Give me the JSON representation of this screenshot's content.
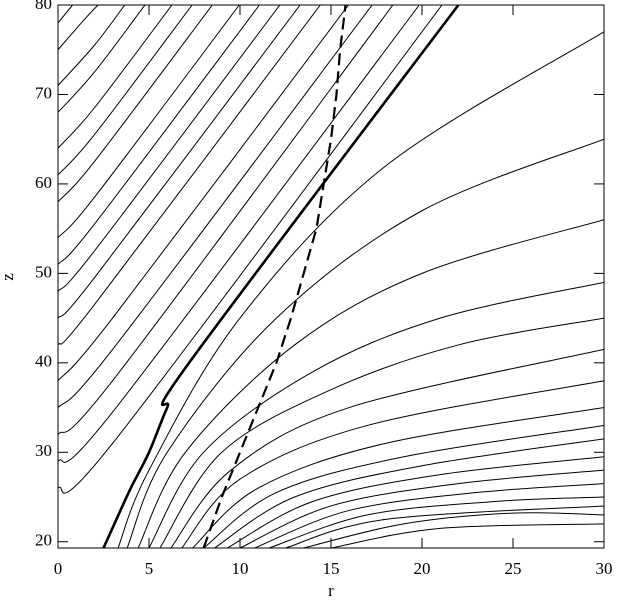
{
  "chart_data": {
    "type": "line",
    "xlabel": "r",
    "ylabel": "z",
    "xlim": [
      0,
      30
    ],
    "ylim": [
      19.3,
      80
    ],
    "xticks": [
      0,
      5,
      10,
      15,
      20,
      25,
      30
    ],
    "yticks": [
      20,
      30,
      40,
      50,
      60,
      70,
      80
    ],
    "series": [
      {
        "color": "#000",
        "width": 1,
        "x": [
          0,
          0.8
        ],
        "values": [
          78,
          80
        ]
      },
      {
        "color": "#000",
        "width": 1,
        "x": [
          0,
          1.5,
          2.2
        ],
        "values": [
          75,
          78.5,
          80
        ]
      },
      {
        "color": "#000",
        "width": 1,
        "x": [
          0,
          2,
          3.67
        ],
        "values": [
          71,
          75.5,
          80
        ]
      },
      {
        "color": "#000",
        "width": 1,
        "x": [
          0,
          2,
          4.78
        ],
        "values": [
          68,
          72.5,
          80
        ]
      },
      {
        "color": "#000",
        "width": 1,
        "x": [
          0,
          2,
          6.26
        ],
        "values": [
          64,
          68.5,
          80
        ]
      },
      {
        "color": "#000",
        "width": 1,
        "x": [
          0,
          2,
          7.37
        ],
        "values": [
          61,
          65.5,
          80
        ]
      },
      {
        "color": "#000",
        "width": 1,
        "x": [
          0,
          2,
          8.48
        ],
        "values": [
          58,
          62.5,
          80
        ]
      },
      {
        "color": "#000",
        "width": 1,
        "x": [
          0,
          2,
          9.96
        ],
        "values": [
          54,
          58.5,
          80
        ]
      },
      {
        "color": "#000",
        "width": 1,
        "x": [
          0,
          2,
          11.07
        ],
        "values": [
          51,
          55.5,
          80
        ]
      },
      {
        "color": "#000",
        "width": 1,
        "x": [
          0,
          2,
          12.19
        ],
        "values": [
          48,
          52.5,
          80
        ]
      },
      {
        "color": "#000",
        "width": 1,
        "x": [
          0,
          2,
          13.3
        ],
        "values": [
          45,
          49.5,
          80
        ]
      },
      {
        "color": "#000",
        "width": 1,
        "x": [
          0,
          2,
          14.41
        ],
        "values": [
          42,
          46.5,
          80
        ]
      },
      {
        "color": "#000",
        "width": 1,
        "x": [
          0,
          3,
          15.96
        ],
        "values": [
          38,
          45,
          80
        ]
      },
      {
        "color": "#000",
        "width": 1,
        "x": [
          0,
          3,
          17.26
        ],
        "values": [
          35,
          41.5,
          80
        ]
      },
      {
        "color": "#000",
        "width": 1,
        "x": [
          0,
          3,
          18.4
        ],
        "values": [
          32,
          38,
          80
        ]
      },
      {
        "color": "#000",
        "width": 1,
        "x": [
          0,
          3,
          19.85
        ],
        "values": [
          29,
          34.5,
          80
        ]
      },
      {
        "color": "#000",
        "width": 1,
        "x": [
          0,
          3,
          21.1
        ],
        "values": [
          26,
          31,
          80
        ]
      },
      {
        "color": "#000",
        "width": 1,
        "x": [
          3.3,
          5,
          10,
          18,
          30
        ],
        "values": [
          19.3,
          28,
          45,
          62,
          77
        ]
      },
      {
        "color": "#000",
        "width": 1,
        "x": [
          3.8,
          6,
          12,
          20,
          30
        ],
        "values": [
          19.3,
          30,
          45,
          57,
          65
        ]
      },
      {
        "color": "#000",
        "width": 1,
        "x": [
          4.4,
          7,
          13,
          20,
          30
        ],
        "values": [
          19.3,
          30,
          42,
          50,
          56
        ]
      },
      {
        "color": "#000",
        "width": 1,
        "x": [
          5,
          8,
          14,
          21,
          30
        ],
        "values": [
          19.3,
          30,
          39,
          45,
          49
        ]
      },
      {
        "color": "#000",
        "width": 1,
        "x": [
          5.6,
          9,
          15,
          22,
          30
        ],
        "values": [
          19.3,
          30,
          37,
          42,
          45
        ]
      },
      {
        "color": "#000",
        "width": 1,
        "x": [
          6.2,
          9.5,
          16,
          30
        ],
        "values": [
          19.3,
          28,
          35,
          41.5
        ]
      },
      {
        "color": "#000",
        "width": 1,
        "x": [
          6.8,
          10,
          17,
          30
        ],
        "values": [
          19.3,
          27,
          33,
          38
        ]
      },
      {
        "color": "#000",
        "width": 1,
        "x": [
          7.4,
          11,
          18,
          30
        ],
        "values": [
          19.3,
          26,
          31,
          35
        ]
      },
      {
        "color": "#000",
        "width": 1,
        "x": [
          8,
          12,
          19,
          30
        ],
        "values": [
          19.3,
          25.5,
          29.5,
          33
        ]
      },
      {
        "color": "#000",
        "width": 1,
        "x": [
          8.6,
          13,
          20,
          30
        ],
        "values": [
          19.3,
          25,
          28.5,
          31.5
        ]
      },
      {
        "color": "#000",
        "width": 1,
        "x": [
          9.3,
          14,
          21,
          30
        ],
        "values": [
          19.3,
          24.5,
          27.5,
          29.5
        ]
      },
      {
        "color": "#000",
        "width": 1,
        "x": [
          10,
          15,
          22,
          30
        ],
        "values": [
          19.3,
          24,
          26.5,
          28
        ]
      },
      {
        "color": "#000",
        "width": 1,
        "x": [
          10.8,
          16,
          23,
          30
        ],
        "values": [
          19.3,
          23.5,
          25.5,
          26.5
        ]
      },
      {
        "color": "#000",
        "width": 1,
        "x": [
          11.6,
          17,
          24,
          30
        ],
        "values": [
          19.3,
          23,
          24.5,
          25
        ]
      },
      {
        "color": "#000",
        "width": 1,
        "x": [
          12.5,
          18,
          30
        ],
        "values": [
          19.3,
          22.5,
          24
        ]
      },
      {
        "color": "#000",
        "width": 1,
        "x": [
          13.5,
          19,
          25,
          30
        ],
        "values": [
          19.3,
          22,
          23.2,
          23
        ]
      },
      {
        "color": "#000",
        "width": 1,
        "x": [
          15,
          21,
          30
        ],
        "values": [
          19.3,
          21.5,
          22
        ]
      },
      {
        "color": "#000",
        "width": 2.6,
        "x": [
          2.5,
          3.1,
          4,
          5,
          6,
          7.2,
          22
        ],
        "values": [
          19.3,
          22,
          26,
          30,
          35,
          40,
          80
        ]
      },
      {
        "color": "#000",
        "width": 2.2,
        "dash": true,
        "x": [
          8,
          9,
          10,
          11,
          12,
          12.8,
          13.5,
          14.2,
          14.6,
          15,
          15.3,
          15.5,
          15.8
        ],
        "values": [
          19.3,
          25,
          30,
          35,
          40,
          45,
          50,
          55,
          60,
          65,
          70,
          75,
          80
        ]
      }
    ]
  }
}
